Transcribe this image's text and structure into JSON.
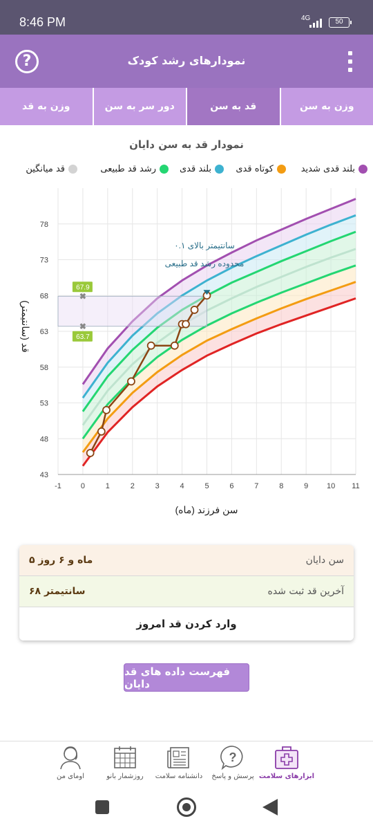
{
  "status_bar": {
    "time": "8:46 PM",
    "network": "4G",
    "battery": "50"
  },
  "header": {
    "title": "نمودارهای رشد کودک",
    "help_icon": "help-circle-icon",
    "menu_icon": "more-vertical-icon"
  },
  "tabs": [
    {
      "label": "وزن به سن",
      "active": false
    },
    {
      "label": "قد به سن",
      "active": true
    },
    {
      "label": "دور سر به سن",
      "active": false
    },
    {
      "label": "وزن به قد",
      "active": false
    }
  ],
  "chart_title": "نمودار قد به سن دایان",
  "legend": [
    {
      "label": "بلند قدی شدید",
      "color": "#a24fb0"
    },
    {
      "label": "کوتاه قدی",
      "color": "#f39c12"
    },
    {
      "label": "بلند قدی",
      "color": "#3db2d0"
    },
    {
      "label": "رشد قد طبیعی",
      "color": "#24d672"
    },
    {
      "label": "قد میانگین",
      "color": "#d3d3d3"
    }
  ],
  "chart_data": {
    "type": "line",
    "xlabel": "سن فرزند (ماه)",
    "ylabel": "قد (سانتیمتر)",
    "xlim": [
      -1,
      11
    ],
    "ylim": [
      43,
      83
    ],
    "x_ticks": [
      "-1",
      "0",
      "1",
      "2",
      "3",
      "4",
      "5",
      "6",
      "7",
      "8",
      "9",
      "10",
      "11"
    ],
    "y_ticks": [
      "43",
      "48",
      "53",
      "58",
      "63",
      "68",
      "73",
      "78"
    ],
    "reference_x": [
      0,
      1,
      2,
      3,
      4,
      5,
      6,
      7,
      8,
      9,
      10,
      11
    ],
    "reference_series": [
      {
        "name": "red",
        "color": "#e02424",
        "values": [
          44.2,
          48.9,
          52.4,
          55.3,
          57.6,
          59.6,
          61.2,
          62.7,
          64.0,
          65.2,
          66.4,
          67.6
        ]
      },
      {
        "name": "orange",
        "color": "#f39c12",
        "values": [
          46.1,
          50.8,
          54.4,
          57.3,
          59.7,
          61.7,
          63.3,
          64.8,
          66.2,
          67.5,
          68.7,
          69.9
        ]
      },
      {
        "name": "green",
        "color": "#24d672",
        "values": [
          48.0,
          52.8,
          56.4,
          59.4,
          61.8,
          63.8,
          65.5,
          67.0,
          68.4,
          69.7,
          71.0,
          72.2
        ]
      },
      {
        "name": "median",
        "color": "#bfe3cf",
        "values": [
          49.9,
          54.7,
          58.4,
          61.4,
          63.9,
          65.9,
          67.6,
          69.2,
          70.6,
          72.0,
          73.3,
          74.5
        ]
      },
      {
        "name": "green-upper",
        "color": "#24d672",
        "values": [
          51.8,
          56.7,
          60.4,
          63.5,
          66.0,
          68.0,
          69.8,
          71.3,
          72.8,
          74.2,
          75.6,
          76.9
        ]
      },
      {
        "name": "blue",
        "color": "#3db2d0",
        "values": [
          53.7,
          58.6,
          62.4,
          65.5,
          68.0,
          70.1,
          71.9,
          73.5,
          75.0,
          76.5,
          77.9,
          79.2
        ]
      },
      {
        "name": "purple",
        "color": "#a24fb0",
        "values": [
          55.6,
          60.6,
          64.4,
          67.6,
          70.1,
          72.2,
          74.0,
          75.7,
          77.2,
          78.7,
          80.1,
          81.5
        ]
      }
    ],
    "child_series": {
      "name": "دایان",
      "color": "#8b4513",
      "x": [
        0.3,
        0.75,
        0.95,
        1.95,
        2.75,
        3.7,
        4.0,
        4.15,
        4.5,
        5.0
      ],
      "values": [
        46.0,
        49.0,
        52.0,
        56.0,
        61.0,
        61.0,
        64.0,
        64.0,
        66.0,
        68.0
      ]
    },
    "normal_range_markers": {
      "x": 0,
      "upper": 67.9,
      "lower": 63.7,
      "upper_label": "67.9",
      "lower_label": "63.7"
    },
    "annotation": {
      "line1": "۰.۱ سانتیمتر بالای",
      "line2": "محدوده رشد قد طبیعی"
    }
  },
  "info": {
    "age_label": "سن دایان",
    "age_value": "۵ ماه و ۶ روز",
    "height_label": "آخرین قد ثبت شده",
    "height_value": "۶۸ سانتیمتر",
    "enter_button": "وارد کردن قد امروز"
  },
  "list_button": "فهرست داده های قد دایان",
  "bottom_nav": [
    {
      "label": "ابزارهای سلامت",
      "icon": "medical-kit-icon",
      "active": true
    },
    {
      "label": "پرسش و پاسخ",
      "icon": "question-bubble-icon",
      "active": false
    },
    {
      "label": "دانشنامه سلامت",
      "icon": "encyclopedia-icon",
      "active": false
    },
    {
      "label": "روزشمار بانو",
      "icon": "calendar-icon",
      "active": false
    },
    {
      "label": "اومای من",
      "icon": "profile-icon",
      "active": false
    }
  ]
}
